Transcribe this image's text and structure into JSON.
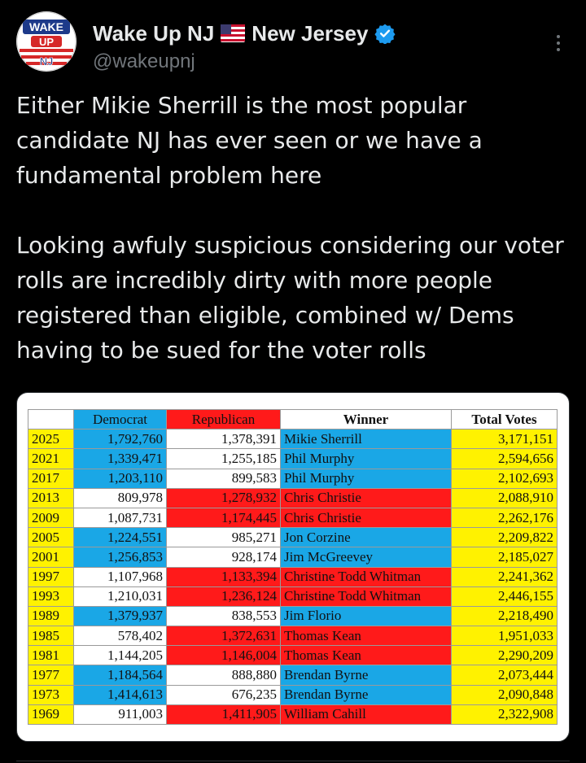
{
  "author": {
    "display_name": "Wake Up NJ",
    "location_name": "New Jersey",
    "handle": "@wakeupnj",
    "avatar_text": [
      "WAKE",
      "UP",
      "NJ"
    ]
  },
  "tweet": {
    "paragraphs": [
      "Either Mikie Sherrill is the most popular candidate NJ has ever seen or we have a fundamental problem here",
      "Looking awfuly suspicious considering our voter rolls are incredibly dirty with more people registered than eligible, combined w/ Dems having to be sued for the voter rolls"
    ]
  },
  "colors": {
    "background": "#000000",
    "text": "#e7e9ea",
    "secondary_text": "#71767b",
    "verified_blue": "#1d9bf0",
    "democrat_blue": "#1aa7e6",
    "republican_red": "#ff1a1a",
    "year_yellow": "#fff200"
  },
  "table": {
    "headers": {
      "year": "",
      "democrat": "Democrat",
      "republican": "Republican",
      "winner": "Winner",
      "total": "Total Votes"
    },
    "rows": [
      {
        "year": "2025",
        "dem": "1,792,760",
        "rep": "1,378,391",
        "winner": "Mikie Sherrill",
        "total": "3,171,151",
        "party": "D"
      },
      {
        "year": "2021",
        "dem": "1,339,471",
        "rep": "1,255,185",
        "winner": "Phil Murphy",
        "total": "2,594,656",
        "party": "D"
      },
      {
        "year": "2017",
        "dem": "1,203,110",
        "rep": "899,583",
        "winner": "Phil Murphy",
        "total": "2,102,693",
        "party": "D"
      },
      {
        "year": "2013",
        "dem": "809,978",
        "rep": "1,278,932",
        "winner": "Chris Christie",
        "total": "2,088,910",
        "party": "R"
      },
      {
        "year": "2009",
        "dem": "1,087,731",
        "rep": "1,174,445",
        "winner": "Chris Christie",
        "total": "2,262,176",
        "party": "R"
      },
      {
        "year": "2005",
        "dem": "1,224,551",
        "rep": "985,271",
        "winner": "Jon Corzine",
        "total": "2,209,822",
        "party": "D"
      },
      {
        "year": "2001",
        "dem": "1,256,853",
        "rep": "928,174",
        "winner": "Jim McGreevey",
        "total": "2,185,027",
        "party": "D"
      },
      {
        "year": "1997",
        "dem": "1,107,968",
        "rep": "1,133,394",
        "winner": "Christine Todd Whitman",
        "total": "2,241,362",
        "party": "R"
      },
      {
        "year": "1993",
        "dem": "1,210,031",
        "rep": "1,236,124",
        "winner": "Christine Todd Whitman",
        "total": "2,446,155",
        "party": "R"
      },
      {
        "year": "1989",
        "dem": "1,379,937",
        "rep": "838,553",
        "winner": "Jim Florio",
        "total": "2,218,490",
        "party": "D"
      },
      {
        "year": "1985",
        "dem": "578,402",
        "rep": "1,372,631",
        "winner": "Thomas Kean",
        "total": "1,951,033",
        "party": "R"
      },
      {
        "year": "1981",
        "dem": "1,144,205",
        "rep": "1,146,004",
        "winner": "Thomas Kean",
        "total": "2,290,209",
        "party": "R"
      },
      {
        "year": "1977",
        "dem": "1,184,564",
        "rep": "888,880",
        "winner": "Brendan Byrne",
        "total": "2,073,444",
        "party": "D"
      },
      {
        "year": "1973",
        "dem": "1,414,613",
        "rep": "676,235",
        "winner": "Brendan Byrne",
        "total": "2,090,848",
        "party": "D"
      },
      {
        "year": "1969",
        "dem": "911,003",
        "rep": "1,411,905",
        "winner": "William Cahill",
        "total": "2,322,908",
        "party": "R"
      }
    ]
  }
}
